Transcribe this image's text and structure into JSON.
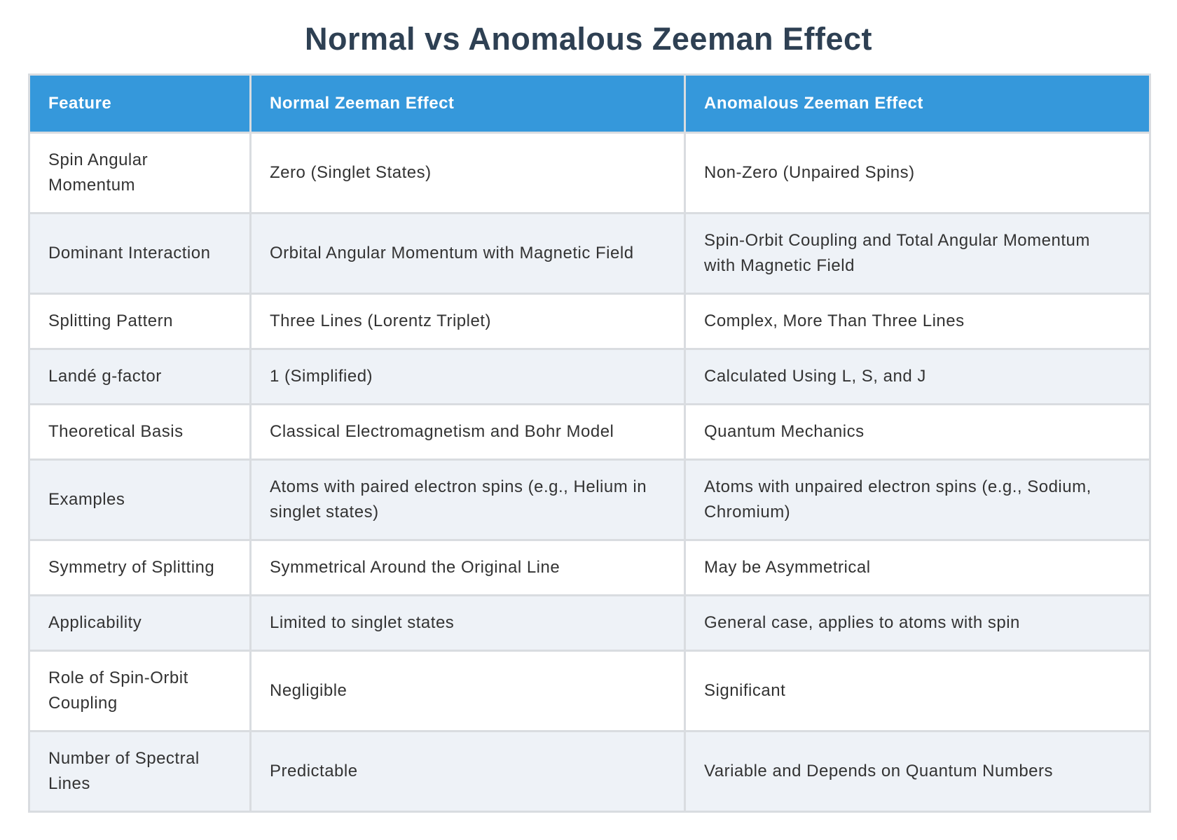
{
  "page": {
    "title": "Normal vs Anomalous Zeeman Effect"
  },
  "colors": {
    "header_bg": "#3598db",
    "header_text": "#ffffff",
    "title_text": "#2e4053",
    "body_text": "#333333",
    "row_stripe": "#eef2f7",
    "cell_border": "#d9dce0"
  },
  "table": {
    "columns": [
      "Feature",
      "Normal Zeeman Effect",
      "Anomalous Zeeman Effect"
    ],
    "rows": [
      [
        "Spin Angular Momentum",
        "Zero (Singlet States)",
        "Non-Zero (Unpaired Spins)"
      ],
      [
        "Dominant Interaction",
        "Orbital Angular Momentum with Magnetic Field",
        "Spin-Orbit Coupling and Total Angular Momentum with Magnetic Field"
      ],
      [
        "Splitting Pattern",
        "Three Lines (Lorentz Triplet)",
        "Complex, More Than Three Lines"
      ],
      [
        "Landé g-factor",
        "1 (Simplified)",
        "Calculated Using L, S, and J"
      ],
      [
        "Theoretical Basis",
        "Classical Electromagnetism and Bohr Model",
        "Quantum Mechanics"
      ],
      [
        "Examples",
        "Atoms with paired electron spins (e.g., Helium in singlet states)",
        "Atoms with unpaired electron spins (e.g., Sodium, Chromium)"
      ],
      [
        "Symmetry of Splitting",
        "Symmetrical Around the Original Line",
        "May be Asymmetrical"
      ],
      [
        "Applicability",
        "Limited to singlet states",
        "General case, applies to atoms with spin"
      ],
      [
        "Role of Spin-Orbit Coupling",
        "Negligible",
        "Significant"
      ],
      [
        "Number of Spectral Lines",
        "Predictable",
        "Variable and Depends on Quantum Numbers"
      ]
    ]
  }
}
